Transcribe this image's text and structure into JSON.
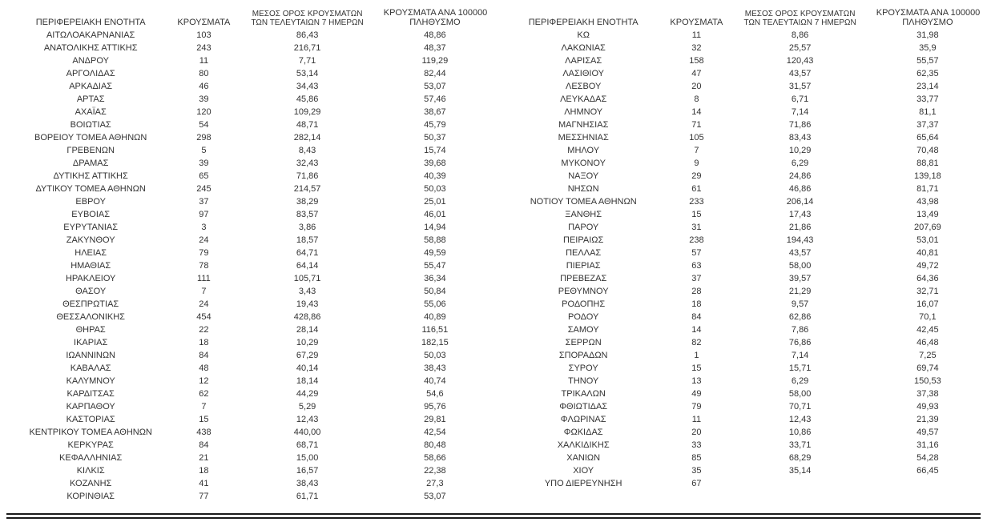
{
  "table": {
    "headers": {
      "region": "ΠΕΡΙΦΕΡΕΙΑΚΗ ΕΝΟΤΗΤΑ",
      "cases": "ΚΡΟΥΣΜΑΤΑ",
      "avg7_line1": "ΜΕΣΟΣ ΟΡΟΣ ΚΡΟΥΣΜΑΤΩΝ",
      "avg7_line2": "ΤΩΝ ΤΕΛΕΥΤΑΙΩΝ 7 ΗΜΕΡΩΝ",
      "per100k_line1": "ΚΡΟΥΣΜΑΤΑ ΑΝΑ 100000",
      "per100k_line2": "ΠΛΗΘΥΣΜΟ"
    },
    "left_rows": [
      [
        "ΑΙΤΩΛΟΑΚΑΡΝΑΝΙΑΣ",
        "103",
        "86,43",
        "48,86"
      ],
      [
        "ΑΝΑΤΟΛΙΚΗΣ ΑΤΤΙΚΗΣ",
        "243",
        "216,71",
        "48,37"
      ],
      [
        "ΑΝΔΡΟΥ",
        "11",
        "7,71",
        "119,29"
      ],
      [
        "ΑΡΓΟΛΙΔΑΣ",
        "80",
        "53,14",
        "82,44"
      ],
      [
        "ΑΡΚΑΔΙΑΣ",
        "46",
        "34,43",
        "53,07"
      ],
      [
        "ΑΡΤΑΣ",
        "39",
        "45,86",
        "57,46"
      ],
      [
        "ΑΧΑΪΑΣ",
        "120",
        "109,29",
        "38,67"
      ],
      [
        "ΒΟΙΩΤΙΑΣ",
        "54",
        "48,71",
        "45,79"
      ],
      [
        "ΒΟΡΕΙΟΥ ΤΟΜΕΑ ΑΘΗΝΩΝ",
        "298",
        "282,14",
        "50,37"
      ],
      [
        "ΓΡΕΒΕΝΩΝ",
        "5",
        "8,43",
        "15,74"
      ],
      [
        "ΔΡΑΜΑΣ",
        "39",
        "32,43",
        "39,68"
      ],
      [
        "ΔΥΤΙΚΗΣ ΑΤΤΙΚΗΣ",
        "65",
        "71,86",
        "40,39"
      ],
      [
        "ΔΥΤΙΚΟΥ ΤΟΜΕΑ ΑΘΗΝΩΝ",
        "245",
        "214,57",
        "50,03"
      ],
      [
        "ΕΒΡΟΥ",
        "37",
        "38,29",
        "25,01"
      ],
      [
        "ΕΥΒΟΙΑΣ",
        "97",
        "83,57",
        "46,01"
      ],
      [
        "ΕΥΡΥΤΑΝΙΑΣ",
        "3",
        "3,86",
        "14,94"
      ],
      [
        "ΖΑΚΥΝΘΟΥ",
        "24",
        "18,57",
        "58,88"
      ],
      [
        "ΗΛΕΙΑΣ",
        "79",
        "64,71",
        "49,59"
      ],
      [
        "ΗΜΑΘΙΑΣ",
        "78",
        "64,14",
        "55,47"
      ],
      [
        "ΗΡΑΚΛΕΙΟΥ",
        "111",
        "105,71",
        "36,34"
      ],
      [
        "ΘΑΣΟΥ",
        "7",
        "3,43",
        "50,84"
      ],
      [
        "ΘΕΣΠΡΩΤΙΑΣ",
        "24",
        "19,43",
        "55,06"
      ],
      [
        "ΘΕΣΣΑΛΟΝΙΚΗΣ",
        "454",
        "428,86",
        "40,89"
      ],
      [
        "ΘΗΡΑΣ",
        "22",
        "28,14",
        "116,51"
      ],
      [
        "ΙΚΑΡΙΑΣ",
        "18",
        "10,29",
        "182,15"
      ],
      [
        "ΙΩΑΝΝΙΝΩΝ",
        "84",
        "67,29",
        "50,03"
      ],
      [
        "ΚΑΒΑΛΑΣ",
        "48",
        "40,14",
        "38,43"
      ],
      [
        "ΚΑΛΥΜΝΟΥ",
        "12",
        "18,14",
        "40,74"
      ],
      [
        "ΚΑΡΔΙΤΣΑΣ",
        "62",
        "44,29",
        "54,6"
      ],
      [
        "ΚΑΡΠΑΘΟΥ",
        "7",
        "5,29",
        "95,76"
      ],
      [
        "ΚΑΣΤΟΡΙΑΣ",
        "15",
        "12,43",
        "29,81"
      ],
      [
        "ΚΕΝΤΡΙΚΟΥ ΤΟΜΕΑ ΑΘΗΝΩΝ",
        "438",
        "440,00",
        "42,54"
      ],
      [
        "ΚΕΡΚΥΡΑΣ",
        "84",
        "68,71",
        "80,48"
      ],
      [
        "ΚΕΦΑΛΛΗΝΙΑΣ",
        "21",
        "15,00",
        "58,66"
      ],
      [
        "ΚΙΛΚΙΣ",
        "18",
        "16,57",
        "22,38"
      ],
      [
        "ΚΟΖΑΝΗΣ",
        "41",
        "38,43",
        "27,3"
      ],
      [
        "ΚΟΡΙΝΘΙΑΣ",
        "77",
        "61,71",
        "53,07"
      ]
    ],
    "right_rows": [
      [
        "ΚΩ",
        "11",
        "8,86",
        "31,98"
      ],
      [
        "ΛΑΚΩΝΙΑΣ",
        "32",
        "25,57",
        "35,9"
      ],
      [
        "ΛΑΡΙΣΑΣ",
        "158",
        "120,43",
        "55,57"
      ],
      [
        "ΛΑΣΙΘΙΟΥ",
        "47",
        "43,57",
        "62,35"
      ],
      [
        "ΛΕΣΒΟΥ",
        "20",
        "31,57",
        "23,14"
      ],
      [
        "ΛΕΥΚΑΔΑΣ",
        "8",
        "6,71",
        "33,77"
      ],
      [
        "ΛΗΜΝΟΥ",
        "14",
        "7,14",
        "81,1"
      ],
      [
        "ΜΑΓΝΗΣΙΑΣ",
        "71",
        "71,86",
        "37,37"
      ],
      [
        "ΜΕΣΣΗΝΙΑΣ",
        "105",
        "83,43",
        "65,64"
      ],
      [
        "ΜΗΛΟΥ",
        "7",
        "10,29",
        "70,48"
      ],
      [
        "ΜΥΚΟΝΟΥ",
        "9",
        "6,29",
        "88,81"
      ],
      [
        "ΝΑΞΟΥ",
        "29",
        "24,86",
        "139,18"
      ],
      [
        "ΝΗΣΩΝ",
        "61",
        "46,86",
        "81,71"
      ],
      [
        "ΝΟΤΙΟΥ ΤΟΜΕΑ ΑΘΗΝΩΝ",
        "233",
        "206,14",
        "43,98"
      ],
      [
        "ΞΑΝΘΗΣ",
        "15",
        "17,43",
        "13,49"
      ],
      [
        "ΠΑΡΟΥ",
        "31",
        "21,86",
        "207,69"
      ],
      [
        "ΠΕΙΡΑΙΩΣ",
        "238",
        "194,43",
        "53,01"
      ],
      [
        "ΠΕΛΛΑΣ",
        "57",
        "43,57",
        "40,81"
      ],
      [
        "ΠΙΕΡΙΑΣ",
        "63",
        "58,00",
        "49,72"
      ],
      [
        "ΠΡΕΒΕΖΑΣ",
        "37",
        "39,57",
        "64,36"
      ],
      [
        "ΡΕΘΥΜΝΟΥ",
        "28",
        "21,29",
        "32,71"
      ],
      [
        "ΡΟΔΟΠΗΣ",
        "18",
        "9,57",
        "16,07"
      ],
      [
        "ΡΟΔΟΥ",
        "84",
        "62,86",
        "70,1"
      ],
      [
        "ΣΑΜΟΥ",
        "14",
        "7,86",
        "42,45"
      ],
      [
        "ΣΕΡΡΩΝ",
        "82",
        "76,86",
        "46,48"
      ],
      [
        "ΣΠΟΡΑΔΩΝ",
        "1",
        "7,14",
        "7,25"
      ],
      [
        "ΣΥΡΟΥ",
        "15",
        "15,71",
        "69,74"
      ],
      [
        "ΤΗΝΟΥ",
        "13",
        "6,29",
        "150,53"
      ],
      [
        "ΤΡΙΚΑΛΩΝ",
        "49",
        "58,00",
        "37,38"
      ],
      [
        "ΦΘΙΩΤΙΔΑΣ",
        "79",
        "70,71",
        "49,93"
      ],
      [
        "ΦΛΩΡΙΝΑΣ",
        "11",
        "12,43",
        "21,39"
      ],
      [
        "ΦΩΚΙΔΑΣ",
        "20",
        "10,86",
        "49,57"
      ],
      [
        "ΧΑΛΚΙΔΙΚΗΣ",
        "33",
        "33,71",
        "31,16"
      ],
      [
        "ΧΑΝΙΩΝ",
        "85",
        "68,29",
        "54,28"
      ],
      [
        "ΧΙΟΥ",
        "35",
        "35,14",
        "66,45"
      ],
      [
        "ΥΠΟ ΔΙΕΡΕΥΝΗΣΗ",
        "67",
        "",
        ""
      ]
    ]
  }
}
